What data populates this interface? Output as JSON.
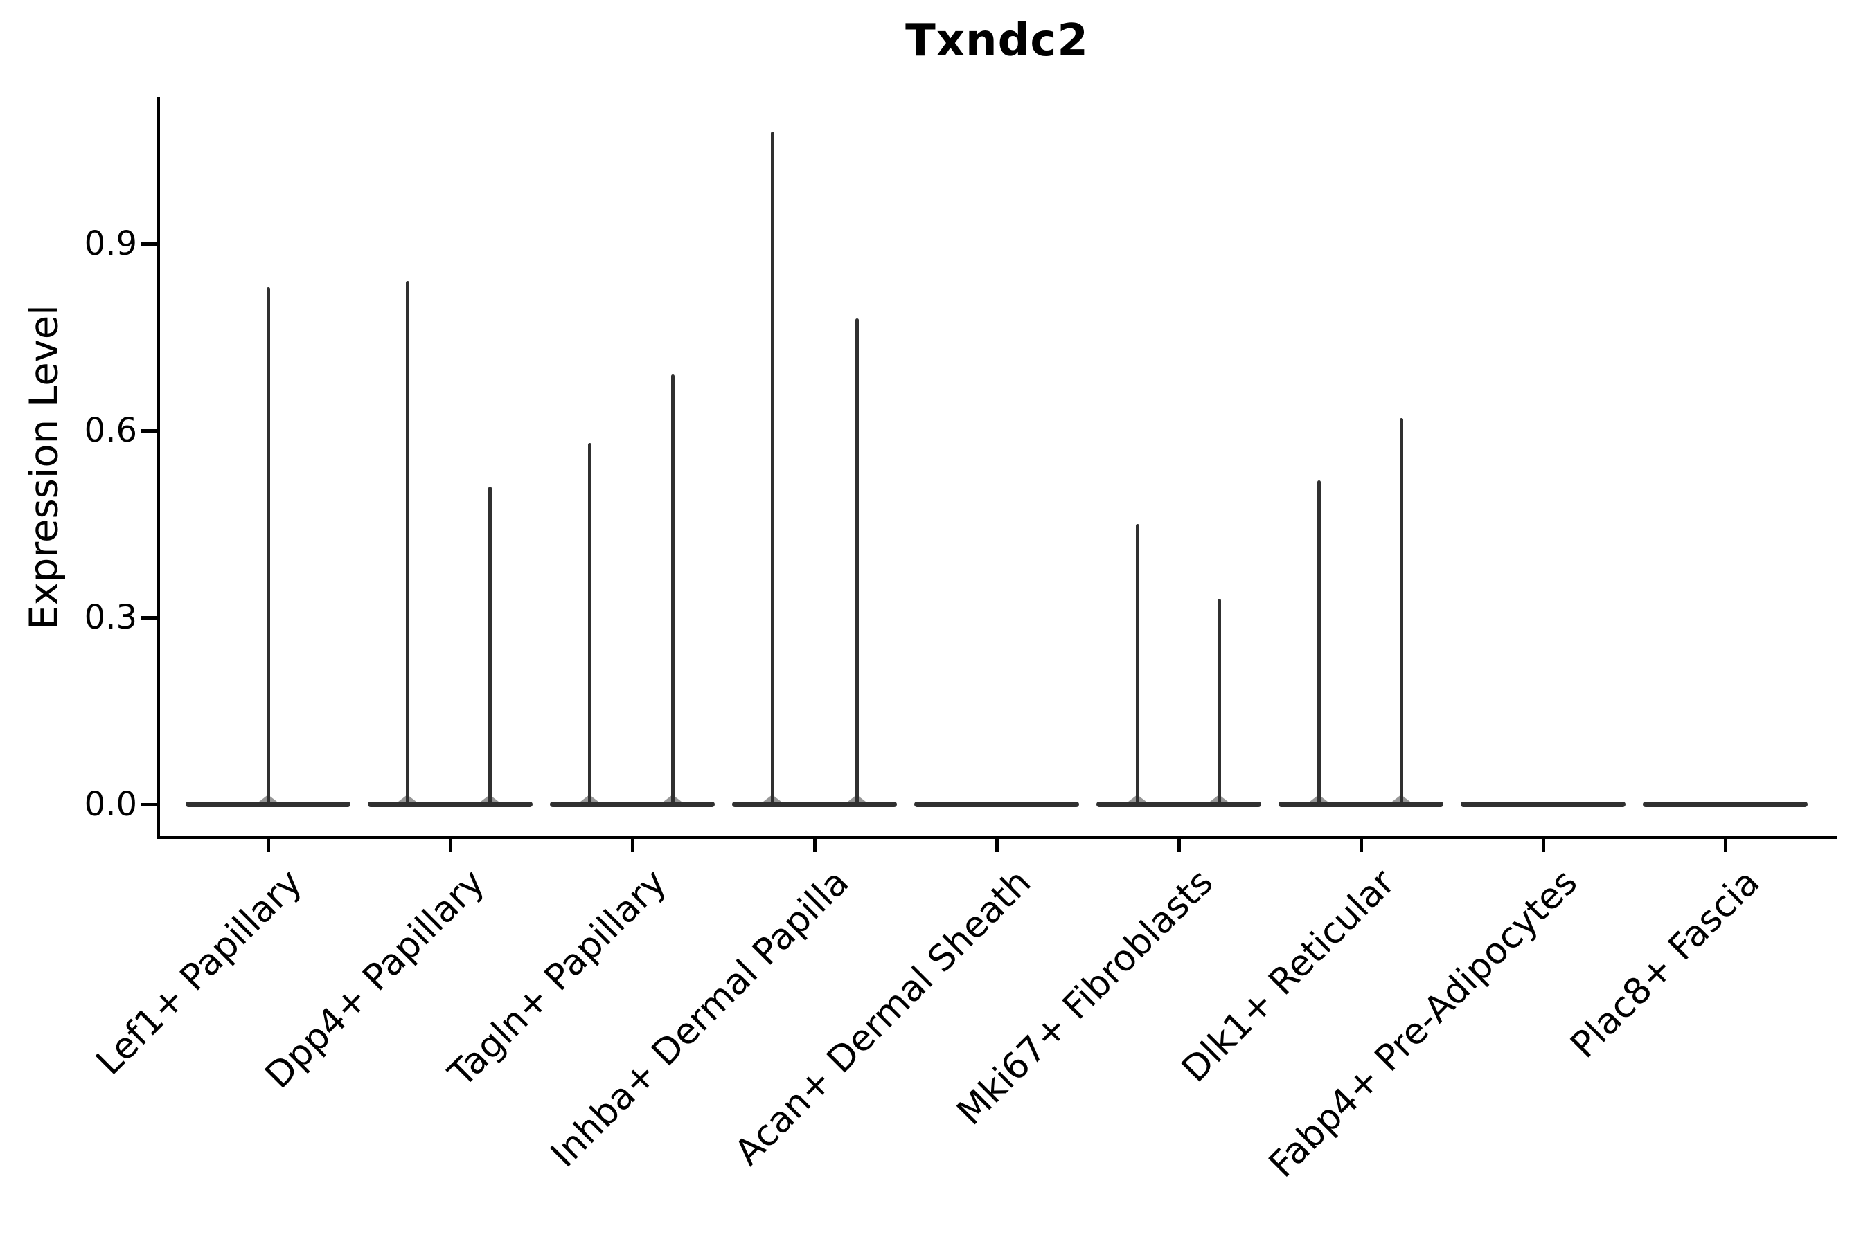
{
  "title": "Txndc2",
  "chart_data": {
    "type": "violin",
    "title": "Txndc2",
    "xlabel": "",
    "ylabel": "Expression Level",
    "grid": false,
    "legend": "none",
    "ylim": [
      -0.05,
      1.14
    ],
    "y_tick_values": [
      0.0,
      0.3,
      0.6,
      0.9
    ],
    "y_tick_labels": [
      "0.0",
      "0.3",
      "0.6",
      "0.9"
    ],
    "categories": [
      "Lef1+ Papillary",
      "Dpp4+ Papillary",
      "Tagln+ Papillary",
      "Inhba+ Dermal Papilla",
      "Acan+ Dermal Sheath",
      "Mki67+ Fibroblasts",
      "Dlk1+ Reticular",
      "Fabp4+ Pre-Adipocytes",
      "Plac8+ Fascia"
    ],
    "series": [
      {
        "category": "Lef1+ Papillary",
        "baseline_value": 0.0,
        "spikes": [
          {
            "dx": 0,
            "max": 0.83
          }
        ]
      },
      {
        "category": "Dpp4+ Papillary",
        "baseline_value": 0.0,
        "spikes": [
          {
            "dx": -62,
            "max": 0.84
          },
          {
            "dx": 57,
            "max": 0.51
          }
        ]
      },
      {
        "category": "Tagln+ Papillary",
        "baseline_value": 0.0,
        "spikes": [
          {
            "dx": -62,
            "max": 0.58
          },
          {
            "dx": 58,
            "max": 0.69
          }
        ]
      },
      {
        "category": "Inhba+ Dermal Papilla",
        "baseline_value": 0.0,
        "spikes": [
          {
            "dx": -61,
            "max": 1.08
          },
          {
            "dx": 61,
            "max": 0.78
          }
        ]
      },
      {
        "category": "Acan+ Dermal Sheath",
        "baseline_value": 0.0,
        "spikes": []
      },
      {
        "category": "Mki67+ Fibroblasts",
        "baseline_value": 0.0,
        "spikes": [
          {
            "dx": -60,
            "max": 0.45
          },
          {
            "dx": 58,
            "max": 0.33
          }
        ]
      },
      {
        "category": "Dlk1+ Reticular",
        "baseline_value": 0.0,
        "spikes": [
          {
            "dx": -61,
            "max": 0.52
          },
          {
            "dx": 58,
            "max": 0.62
          }
        ]
      },
      {
        "category": "Fabp4+ Pre-Adipocytes",
        "baseline_value": 0.0,
        "spikes": []
      },
      {
        "category": "Plac8+ Fascia",
        "baseline_value": 0.0,
        "spikes": []
      }
    ],
    "colors": {
      "violin_stroke": "#303030",
      "axis": "#000000",
      "text": "#000000",
      "background": "#ffffff"
    }
  }
}
